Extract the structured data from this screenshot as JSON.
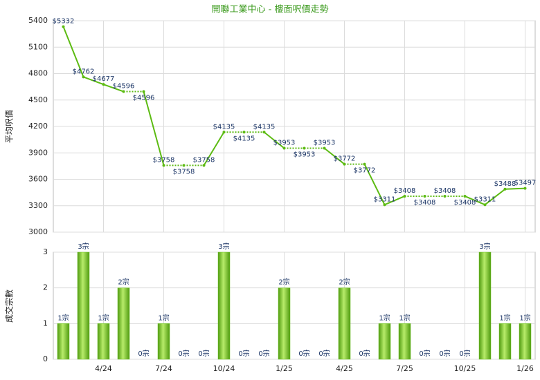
{
  "chart_data": [
    {
      "type": "line",
      "title": "開聯工業中心 - 樓面呎價走勢",
      "y_label": "平均呎價",
      "color": "#5cbb12",
      "values": [
        5332,
        4762,
        4677,
        4596,
        4596,
        3758,
        3758,
        3758,
        4135,
        4135,
        4135,
        3953,
        3953,
        3953,
        3772,
        3772,
        3311,
        3408,
        3408,
        3408,
        3408,
        3311,
        3488,
        3497
      ],
      "value_labels": [
        "$5332",
        "$4762",
        "$4677",
        "$4596",
        "$4596",
        "$3758",
        "$3758",
        "$3758",
        "$4135",
        "$4135",
        "$4135",
        "$3953",
        "$3953",
        "$3953",
        "$3772",
        "$3772",
        "$3311",
        "$3408",
        "$3408",
        "$3408",
        "$3408",
        "$3311",
        "$3488",
        "$3497"
      ],
      "ylim": [
        3000,
        5400
      ],
      "yticks": [
        3000,
        3300,
        3600,
        3900,
        4200,
        4500,
        4800,
        5100,
        5400
      ],
      "grid": true
    },
    {
      "type": "bar",
      "y_label": "成交宗數",
      "color": "#6cc420",
      "categories": [
        null,
        null,
        "4/24",
        null,
        null,
        "7/24",
        null,
        null,
        "10/24",
        null,
        null,
        "1/25",
        null,
        null,
        "4/25",
        null,
        null,
        "7/25",
        null,
        null,
        "10/25",
        null,
        null,
        "1/26"
      ],
      "values": [
        1,
        3,
        1,
        2,
        0,
        1,
        0,
        0,
        3,
        0,
        0,
        2,
        0,
        0,
        2,
        0,
        1,
        1,
        0,
        0,
        0,
        3,
        1,
        1
      ],
      "value_labels": [
        "1宗",
        "3宗",
        "1宗",
        "2宗",
        "0宗",
        "1宗",
        "0宗",
        "0宗",
        "3宗",
        "0宗",
        "0宗",
        "2宗",
        "0宗",
        "0宗",
        "2宗",
        "0宗",
        "1宗",
        "1宗",
        "0宗",
        "0宗",
        "0宗",
        "3宗",
        "1宗",
        "1宗"
      ],
      "ylim": [
        0,
        3
      ],
      "yticks": [
        0,
        1,
        2,
        3
      ],
      "grid": true
    }
  ]
}
